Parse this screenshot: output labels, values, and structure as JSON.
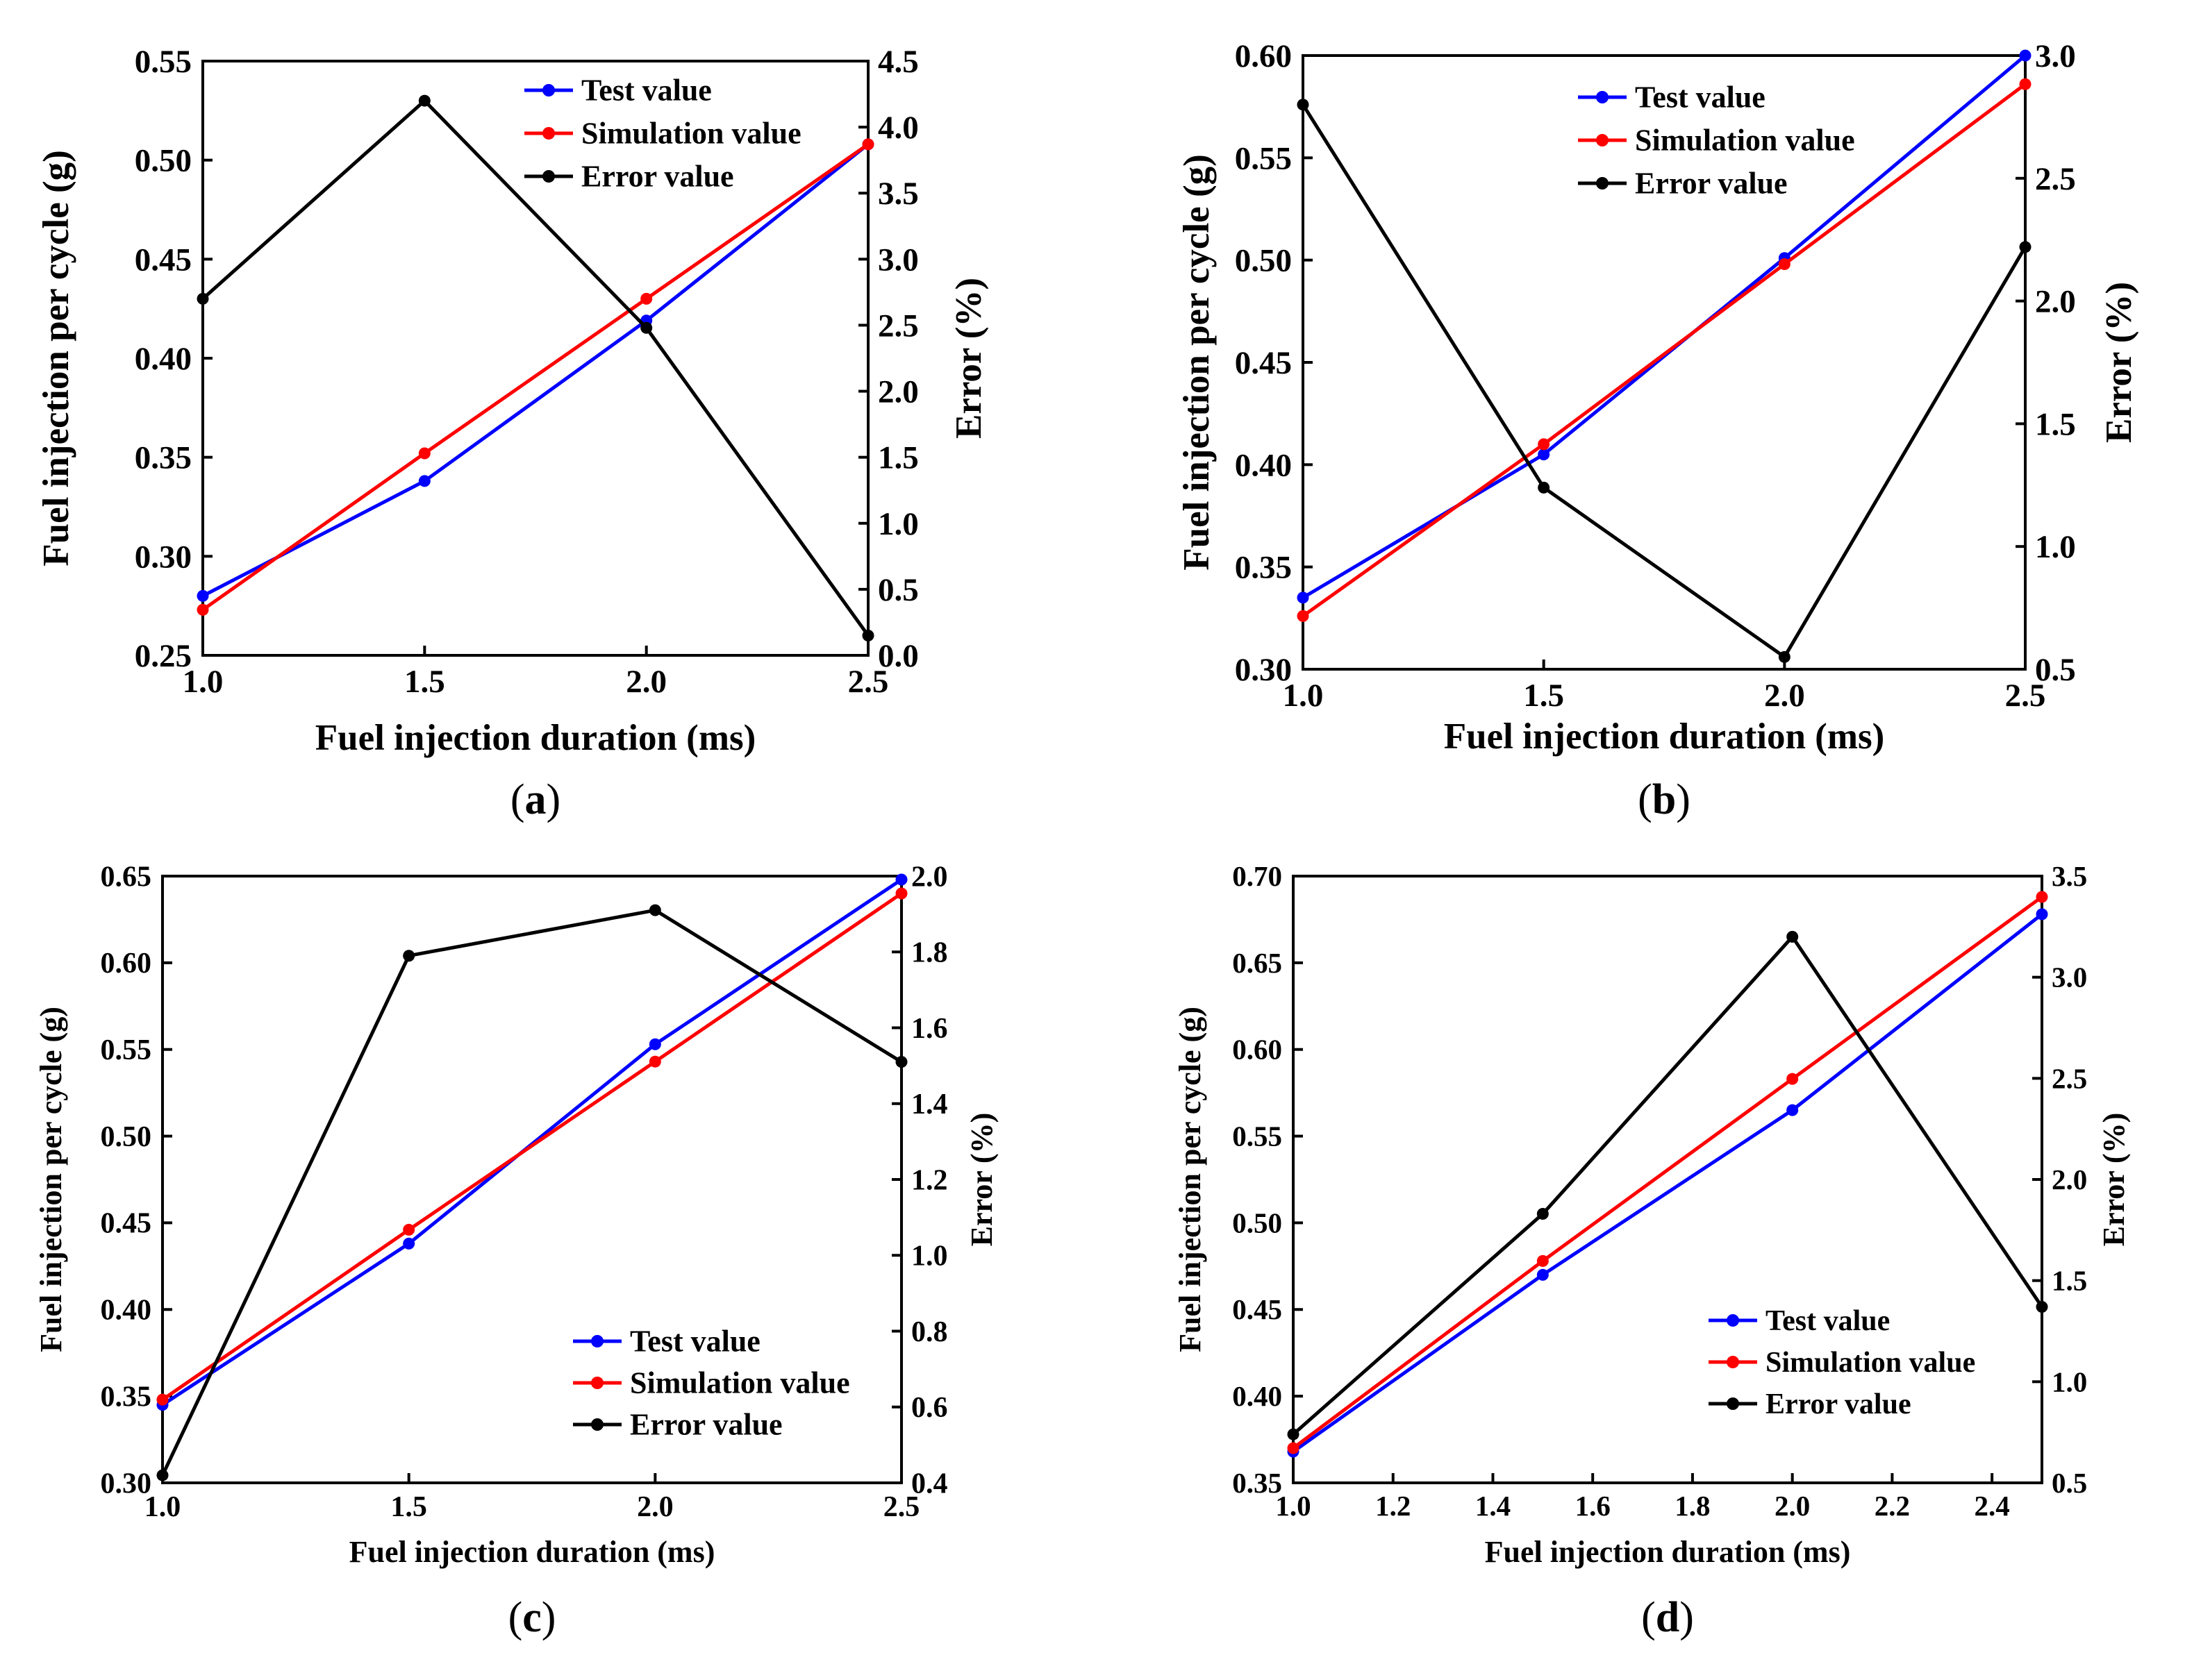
{
  "chart_data": [
    {
      "type": "line",
      "panel_label": "a",
      "xlabel": "Fuel injection duration (ms)",
      "ylabel": "Fuel injection per cycle (g)",
      "y2label": "Error (%)",
      "xlim": [
        1.0,
        2.5
      ],
      "xticks": [
        "1.0",
        "1.5",
        "2.0",
        "2.5"
      ],
      "ylim": [
        0.25,
        0.55
      ],
      "yticks": [
        "0.25",
        "0.30",
        "0.35",
        "0.40",
        "0.45",
        "0.50",
        "0.55"
      ],
      "y2lim": [
        0.0,
        4.5
      ],
      "y2ticks": [
        "0.0",
        "0.5",
        "1.0",
        "1.5",
        "2.0",
        "2.5",
        "3.0",
        "3.5",
        "4.0",
        "4.5"
      ],
      "x": [
        1.0,
        1.5,
        2.0,
        2.5
      ],
      "series": [
        {
          "name": "Test value",
          "axis": "left",
          "color": "#0000ff",
          "values": [
            0.28,
            0.338,
            0.419,
            0.508
          ]
        },
        {
          "name": "Simulation value",
          "axis": "left",
          "color": "#ff0000",
          "values": [
            0.273,
            0.352,
            0.43,
            0.508
          ]
        },
        {
          "name": "Error value",
          "axis": "right",
          "color": "#000000",
          "values": [
            2.7,
            4.2,
            2.48,
            0.15
          ]
        }
      ],
      "legend_position": "top-right"
    },
    {
      "type": "line",
      "panel_label": "b",
      "xlabel": "Fuel injection duration (ms)",
      "ylabel": "Fuel injection per cycle (g)",
      "y2label": "Error (%)",
      "xlim": [
        1.0,
        2.5
      ],
      "xticks": [
        "1.0",
        "1.5",
        "2.0",
        "2.5"
      ],
      "ylim": [
        0.3,
        0.6
      ],
      "yticks": [
        "0.30",
        "0.35",
        "0.40",
        "0.45",
        "0.50",
        "0.55",
        "0.60"
      ],
      "y2lim": [
        0.5,
        3.0
      ],
      "y2ticks": [
        "0.5",
        "1.0",
        "1.5",
        "2.0",
        "2.5",
        "3.0"
      ],
      "x": [
        1.0,
        1.5,
        2.0,
        2.5
      ],
      "series": [
        {
          "name": "Test value",
          "axis": "left",
          "color": "#0000ff",
          "values": [
            0.335,
            0.405,
            0.501,
            0.6
          ]
        },
        {
          "name": "Simulation value",
          "axis": "left",
          "color": "#ff0000",
          "values": [
            0.326,
            0.41,
            0.498,
            0.586
          ]
        },
        {
          "name": "Error value",
          "axis": "right",
          "color": "#000000",
          "values": [
            2.8,
            1.24,
            0.55,
            2.22
          ]
        }
      ],
      "legend_position": "top-right"
    },
    {
      "type": "line",
      "panel_label": "c",
      "xlabel": "Fuel injection duration (ms)",
      "ylabel": "Fuel injection per cycle (g)",
      "y2label": "Error (%)",
      "xlim": [
        1.0,
        2.5
      ],
      "xticks": [
        "1.0",
        "1.5",
        "2.0",
        "2.5"
      ],
      "ylim": [
        0.3,
        0.65
      ],
      "yticks": [
        "0.30",
        "0.35",
        "0.40",
        "0.45",
        "0.50",
        "0.55",
        "0.60",
        "0.65"
      ],
      "y2lim": [
        0.4,
        2.0
      ],
      "y2ticks": [
        "0.4",
        "0.6",
        "0.8",
        "1.0",
        "1.2",
        "1.4",
        "1.6",
        "1.8",
        "2.0"
      ],
      "x": [
        1.0,
        1.5,
        2.0,
        2.5
      ],
      "series": [
        {
          "name": "Test value",
          "axis": "left",
          "color": "#0000ff",
          "values": [
            0.345,
            0.438,
            0.553,
            0.648
          ]
        },
        {
          "name": "Simulation value",
          "axis": "left",
          "color": "#ff0000",
          "values": [
            0.348,
            0.446,
            0.543,
            0.64
          ]
        },
        {
          "name": "Error value",
          "axis": "right",
          "color": "#000000",
          "values": [
            0.42,
            1.79,
            1.91,
            1.51
          ]
        }
      ],
      "legend_position": "bottom-right"
    },
    {
      "type": "line",
      "panel_label": "d",
      "xlabel": "Fuel injection duration (ms)",
      "ylabel": "Fuel injection per cycle (g)",
      "y2label": "Error (%)",
      "xlim": [
        1.0,
        2.5
      ],
      "xticks": [
        "1.0",
        "1.2",
        "1.4",
        "1.6",
        "1.8",
        "2.0",
        "2.2",
        "2.4"
      ],
      "ylim": [
        0.35,
        0.7
      ],
      "yticks": [
        "0.35",
        "0.40",
        "0.45",
        "0.50",
        "0.55",
        "0.60",
        "0.65",
        "0.70"
      ],
      "y2lim": [
        0.5,
        3.5
      ],
      "y2ticks": [
        "0.5",
        "1.0",
        "1.5",
        "2.0",
        "2.5",
        "3.0",
        "3.5"
      ],
      "x": [
        1.0,
        1.5,
        2.0,
        2.5
      ],
      "series": [
        {
          "name": "Test value",
          "axis": "left",
          "color": "#0000ff",
          "values": [
            0.368,
            0.47,
            0.565,
            0.678
          ]
        },
        {
          "name": "Simulation value",
          "axis": "left",
          "color": "#ff0000",
          "values": [
            0.37,
            0.478,
            0.583,
            0.688
          ]
        },
        {
          "name": "Error value",
          "axis": "right",
          "color": "#000000",
          "values": [
            0.74,
            1.83,
            3.2,
            1.37
          ]
        }
      ],
      "legend_position": "bottom-right"
    }
  ]
}
